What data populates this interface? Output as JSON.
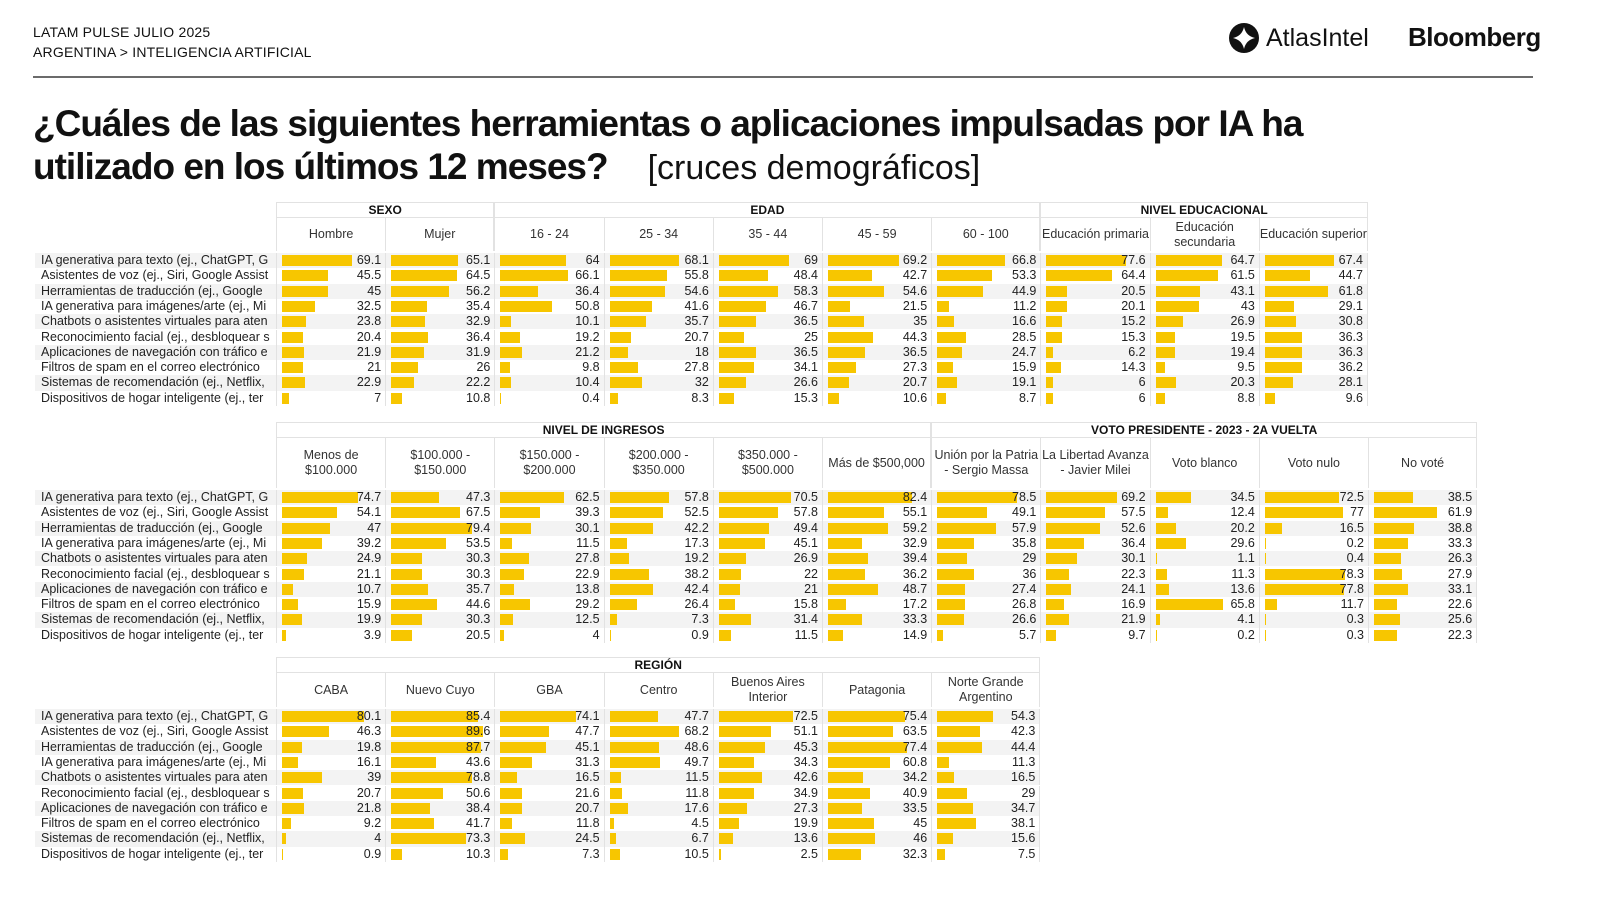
{
  "header": {
    "line1": "LATAM PULSE JULIO 2025",
    "line2": "ARGENTINA > INTELIGENCIA ARTIFICIAL",
    "logo_atlas": "AtlasIntel",
    "logo_bloomberg": "Bloomberg"
  },
  "title": "¿Cuáles de las siguientes herramientas o aplicaciones impulsadas por IA ha utilizado en los últimos 12 meses?",
  "subtitle": "[cruces demográficos]",
  "colors": {
    "bar": "#f7c600",
    "row_alt": "#f3f3f3",
    "grid": "#e2e2e2"
  },
  "chart_data": {
    "type": "table",
    "unit": "%",
    "row_labels": [
      "IA generativa para texto (ej., ChatGPT, G",
      "Asistentes de voz (ej., Siri, Google Assist",
      "Herramientas de traducción (ej., Google",
      "IA generativa para imágenes/arte (ej., Mi",
      "Chatbots o asistentes virtuales para aten",
      "Reconocimiento facial (ej., desbloquear s",
      "Aplicaciones de navegación con tráfico e",
      "Filtros de spam en el correo electrónico",
      "Sistemas de recomendación (ej., Netflix,",
      "Dispositivos de hogar inteligente (ej., ter"
    ],
    "tables": [
      {
        "groups": [
          {
            "name": "SEXO",
            "columns": [
              {
                "name": "Hombre",
                "values": [
                  69.1,
                  45.5,
                  45,
                  32.5,
                  23.8,
                  20.4,
                  21.9,
                  21,
                  22.9,
                  7
                ]
              },
              {
                "name": "Mujer",
                "values": [
                  65.1,
                  64.5,
                  56.2,
                  35.4,
                  32.9,
                  36.4,
                  31.9,
                  26,
                  22.2,
                  10.8
                ]
              }
            ]
          },
          {
            "name": "EDAD",
            "columns": [
              {
                "name": "16 - 24",
                "values": [
                  64,
                  66.1,
                  36.4,
                  50.8,
                  10.1,
                  19.2,
                  21.2,
                  9.8,
                  10.4,
                  0.4
                ]
              },
              {
                "name": "25 - 34",
                "values": [
                  68.1,
                  55.8,
                  54.6,
                  41.6,
                  35.7,
                  20.7,
                  18,
                  27.8,
                  32,
                  8.3
                ]
              },
              {
                "name": "35 - 44",
                "values": [
                  69,
                  48.4,
                  58.3,
                  46.7,
                  36.5,
                  25,
                  36.5,
                  34.1,
                  26.6,
                  15.3
                ]
              },
              {
                "name": "45 - 59",
                "values": [
                  69.2,
                  42.7,
                  54.6,
                  21.5,
                  35,
                  44.3,
                  36.5,
                  27.3,
                  20.7,
                  10.6
                ]
              },
              {
                "name": "60 - 100",
                "values": [
                  66.8,
                  53.3,
                  44.9,
                  11.2,
                  16.6,
                  28.5,
                  24.7,
                  15.9,
                  19.1,
                  8.7
                ]
              }
            ]
          },
          {
            "name": "NIVEL EDUCACIONAL",
            "columns": [
              {
                "name": "Educación primaria",
                "values": [
                  77.6,
                  64.4,
                  20.5,
                  20.1,
                  15.2,
                  15.3,
                  6.2,
                  14.3,
                  6,
                  6
                ]
              },
              {
                "name": "Educación secundaria",
                "values": [
                  64.7,
                  61.5,
                  43.1,
                  43,
                  26.9,
                  19.5,
                  19.4,
                  9.5,
                  20.3,
                  8.8
                ]
              },
              {
                "name": "Educación superior",
                "values": [
                  67.4,
                  44.7,
                  61.8,
                  29.1,
                  30.8,
                  36.3,
                  36.3,
                  36.2,
                  28.1,
                  9.6
                ]
              }
            ]
          }
        ]
      },
      {
        "groups": [
          {
            "name": "NIVEL DE INGRESOS",
            "columns": [
              {
                "name": "Menos de $100.000",
                "values": [
                  74.7,
                  54.1,
                  47,
                  39.2,
                  24.9,
                  21.1,
                  10.7,
                  15.9,
                  19.9,
                  3.9
                ]
              },
              {
                "name": "$100.000 - $150.000",
                "values": [
                  47.3,
                  67.5,
                  79.4,
                  53.5,
                  30.3,
                  30.3,
                  35.7,
                  44.6,
                  30.3,
                  20.5
                ]
              },
              {
                "name": "$150.000 - $200.000",
                "values": [
                  62.5,
                  39.3,
                  30.1,
                  11.5,
                  27.8,
                  22.9,
                  13.8,
                  29.2,
                  12.5,
                  4
                ]
              },
              {
                "name": "$200.000 - $350.000",
                "values": [
                  57.8,
                  52.5,
                  42.2,
                  17.3,
                  19.2,
                  38.2,
                  42.4,
                  26.4,
                  7.3,
                  0.9
                ]
              },
              {
                "name": "$350.000 - $500.000",
                "values": [
                  70.5,
                  57.8,
                  49.4,
                  45.1,
                  26.9,
                  22,
                  21,
                  15.8,
                  31.4,
                  11.5
                ]
              },
              {
                "name": "Más de $500,000",
                "values": [
                  82.4,
                  55.1,
                  59.2,
                  32.9,
                  39.4,
                  36.2,
                  48.7,
                  17.2,
                  33.3,
                  14.9
                ]
              }
            ]
          },
          {
            "name": "VOTO PRESIDENTE - 2023 - 2A VUELTA",
            "columns": [
              {
                "name": "Unión por la Patria - Sergio Massa",
                "values": [
                  78.5,
                  49.1,
                  57.9,
                  35.8,
                  29,
                  36,
                  27.4,
                  26.8,
                  26.6,
                  5.7
                ]
              },
              {
                "name": "La Libertad Avanza - Javier Milei",
                "values": [
                  69.2,
                  57.5,
                  52.6,
                  36.4,
                  30.1,
                  22.3,
                  24.1,
                  16.9,
                  21.9,
                  9.7
                ]
              },
              {
                "name": "Voto blanco",
                "values": [
                  34.5,
                  12.4,
                  20.2,
                  29.6,
                  1.1,
                  11.3,
                  13.6,
                  65.8,
                  4.1,
                  0.2
                ]
              },
              {
                "name": "Voto nulo",
                "values": [
                  72.5,
                  77,
                  16.5,
                  0.2,
                  0.4,
                  78.3,
                  77.8,
                  11.7,
                  0.3,
                  0.3
                ]
              },
              {
                "name": "No voté",
                "values": [
                  38.5,
                  61.9,
                  38.8,
                  33.3,
                  26.3,
                  27.9,
                  33.1,
                  22.6,
                  25.6,
                  22.3
                ]
              }
            ]
          }
        ]
      },
      {
        "groups": [
          {
            "name": "REGIÓN",
            "columns": [
              {
                "name": "CABA",
                "values": [
                  80.1,
                  46.3,
                  19.8,
                  16.1,
                  39,
                  20.7,
                  21.8,
                  9.2,
                  4,
                  0.9
                ]
              },
              {
                "name": "Nuevo Cuyo",
                "values": [
                  85.4,
                  89.6,
                  87.7,
                  43.6,
                  78.8,
                  50.6,
                  38.4,
                  41.7,
                  73.3,
                  10.3
                ]
              },
              {
                "name": "GBA",
                "values": [
                  74.1,
                  47.7,
                  45.1,
                  31.3,
                  16.5,
                  21.6,
                  20.7,
                  11.8,
                  24.5,
                  7.3
                ]
              },
              {
                "name": "Centro",
                "values": [
                  47.7,
                  68.2,
                  48.6,
                  49.7,
                  11.5,
                  11.8,
                  17.6,
                  4.5,
                  6.7,
                  10.5
                ]
              },
              {
                "name": "Buenos Aires Interior",
                "values": [
                  72.5,
                  51.1,
                  45.3,
                  34.3,
                  42.6,
                  34.9,
                  27.3,
                  19.9,
                  13.6,
                  2.5
                ]
              },
              {
                "name": "Patagonia",
                "values": [
                  75.4,
                  63.5,
                  77.4,
                  60.8,
                  34.2,
                  40.9,
                  33.5,
                  45,
                  46,
                  32.3
                ]
              },
              {
                "name": "Norte Grande Argentino",
                "values": [
                  54.3,
                  42.3,
                  44.4,
                  11.3,
                  16.5,
                  29,
                  34.7,
                  38.1,
                  15.6,
                  7.5
                ]
              }
            ]
          }
        ]
      }
    ]
  }
}
